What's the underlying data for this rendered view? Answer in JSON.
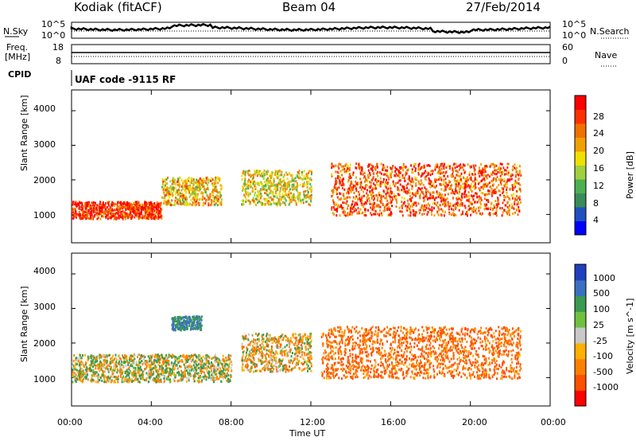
{
  "header": {
    "station": "Kodiak (fitACF)",
    "beam": "Beam 04",
    "date": "27/Feb/2014"
  },
  "top_panels": {
    "nsky_label": "N.Sky",
    "nsearch_label": "N.Search",
    "noise_ticks": [
      "10^5",
      "10^0"
    ],
    "freq_label_line1": "Freq.",
    "freq_label_line2": "[MHz]",
    "freq_ticks": [
      "18",
      "8"
    ],
    "nave_label": "Nave",
    "nave_ticks": [
      "60",
      "0"
    ],
    "cpid_label": "CPID",
    "cpid_value": "UAF code -9115 RF"
  },
  "chart_data": [
    {
      "type": "heatmap",
      "title": "",
      "xlabel": "Time UT",
      "ylabel": "Slant Range [km]",
      "x_ticks": [
        "00:00",
        "04:00",
        "08:00",
        "12:00",
        "16:00",
        "20:00",
        "00:00"
      ],
      "xlim_hours": [
        0,
        24
      ],
      "y_ticks": [
        "1000",
        "2000",
        "3000",
        "4000"
      ],
      "ylim": [
        180,
        4600
      ],
      "colorbar": {
        "label": "Power [dB]",
        "ticks": [
          "4",
          "8",
          "12",
          "16",
          "20",
          "24",
          "28"
        ],
        "range": [
          0,
          30
        ],
        "colors": [
          "#0000ff",
          "#2050c0",
          "#3a8a5a",
          "#4caf50",
          "#a0d040",
          "#f0e000",
          "#f0a000",
          "#f07000",
          "#ff3000",
          "#ff0000"
        ]
      },
      "features": [
        {
          "name": "low-range band",
          "hours": [
            0,
            4.5
          ],
          "range_km": [
            900,
            1400
          ],
          "value_db": 26
        },
        {
          "name": "rising band",
          "hours": [
            4.5,
            7.5
          ],
          "range_km": [
            1300,
            2100
          ],
          "value_db": 18
        },
        {
          "name": "mid-day patches",
          "hours": [
            8.5,
            12
          ],
          "range_km": [
            1300,
            2300
          ],
          "value_db": 16
        },
        {
          "name": "afternoon strong echoes",
          "hours": [
            13,
            22.5
          ],
          "range_km": [
            1000,
            2500
          ],
          "value_db": 24
        }
      ]
    },
    {
      "type": "heatmap",
      "title": "",
      "xlabel": "Time UT",
      "ylabel": "Slant Range [km]",
      "x_ticks": [
        "00:00",
        "04:00",
        "08:00",
        "12:00",
        "16:00",
        "20:00",
        "00:00"
      ],
      "xlim_hours": [
        0,
        24
      ],
      "y_ticks": [
        "1000",
        "2000",
        "3000",
        "4000"
      ],
      "ylim": [
        180,
        4600
      ],
      "colorbar": {
        "label": "Velocity [m s^-1]",
        "ticks": [
          "1000",
          "500",
          "100",
          "25",
          "-25",
          "-100",
          "-500",
          "-1000"
        ],
        "colors": [
          "#2040c0",
          "#3a70c0",
          "#3a9a50",
          "#70c040",
          "#c8c8c8",
          "#ffb000",
          "#ff8000",
          "#ff5000",
          "#ff0000"
        ]
      },
      "features": [
        {
          "name": "ground scatter band",
          "hours": [
            0,
            8
          ],
          "range_km": [
            900,
            1700
          ],
          "value_ms": 0
        },
        {
          "name": "positive velocity patch",
          "hours": [
            5,
            6.5
          ],
          "range_km": [
            2400,
            2800
          ],
          "value_ms": 300
        },
        {
          "name": "mid-day mixed",
          "hours": [
            8.5,
            12
          ],
          "range_km": [
            1200,
            2300
          ],
          "value_ms": -100
        },
        {
          "name": "afternoon negative velocities",
          "hours": [
            12.5,
            22.5
          ],
          "range_km": [
            1000,
            2500
          ],
          "value_ms": -300
        }
      ]
    }
  ]
}
